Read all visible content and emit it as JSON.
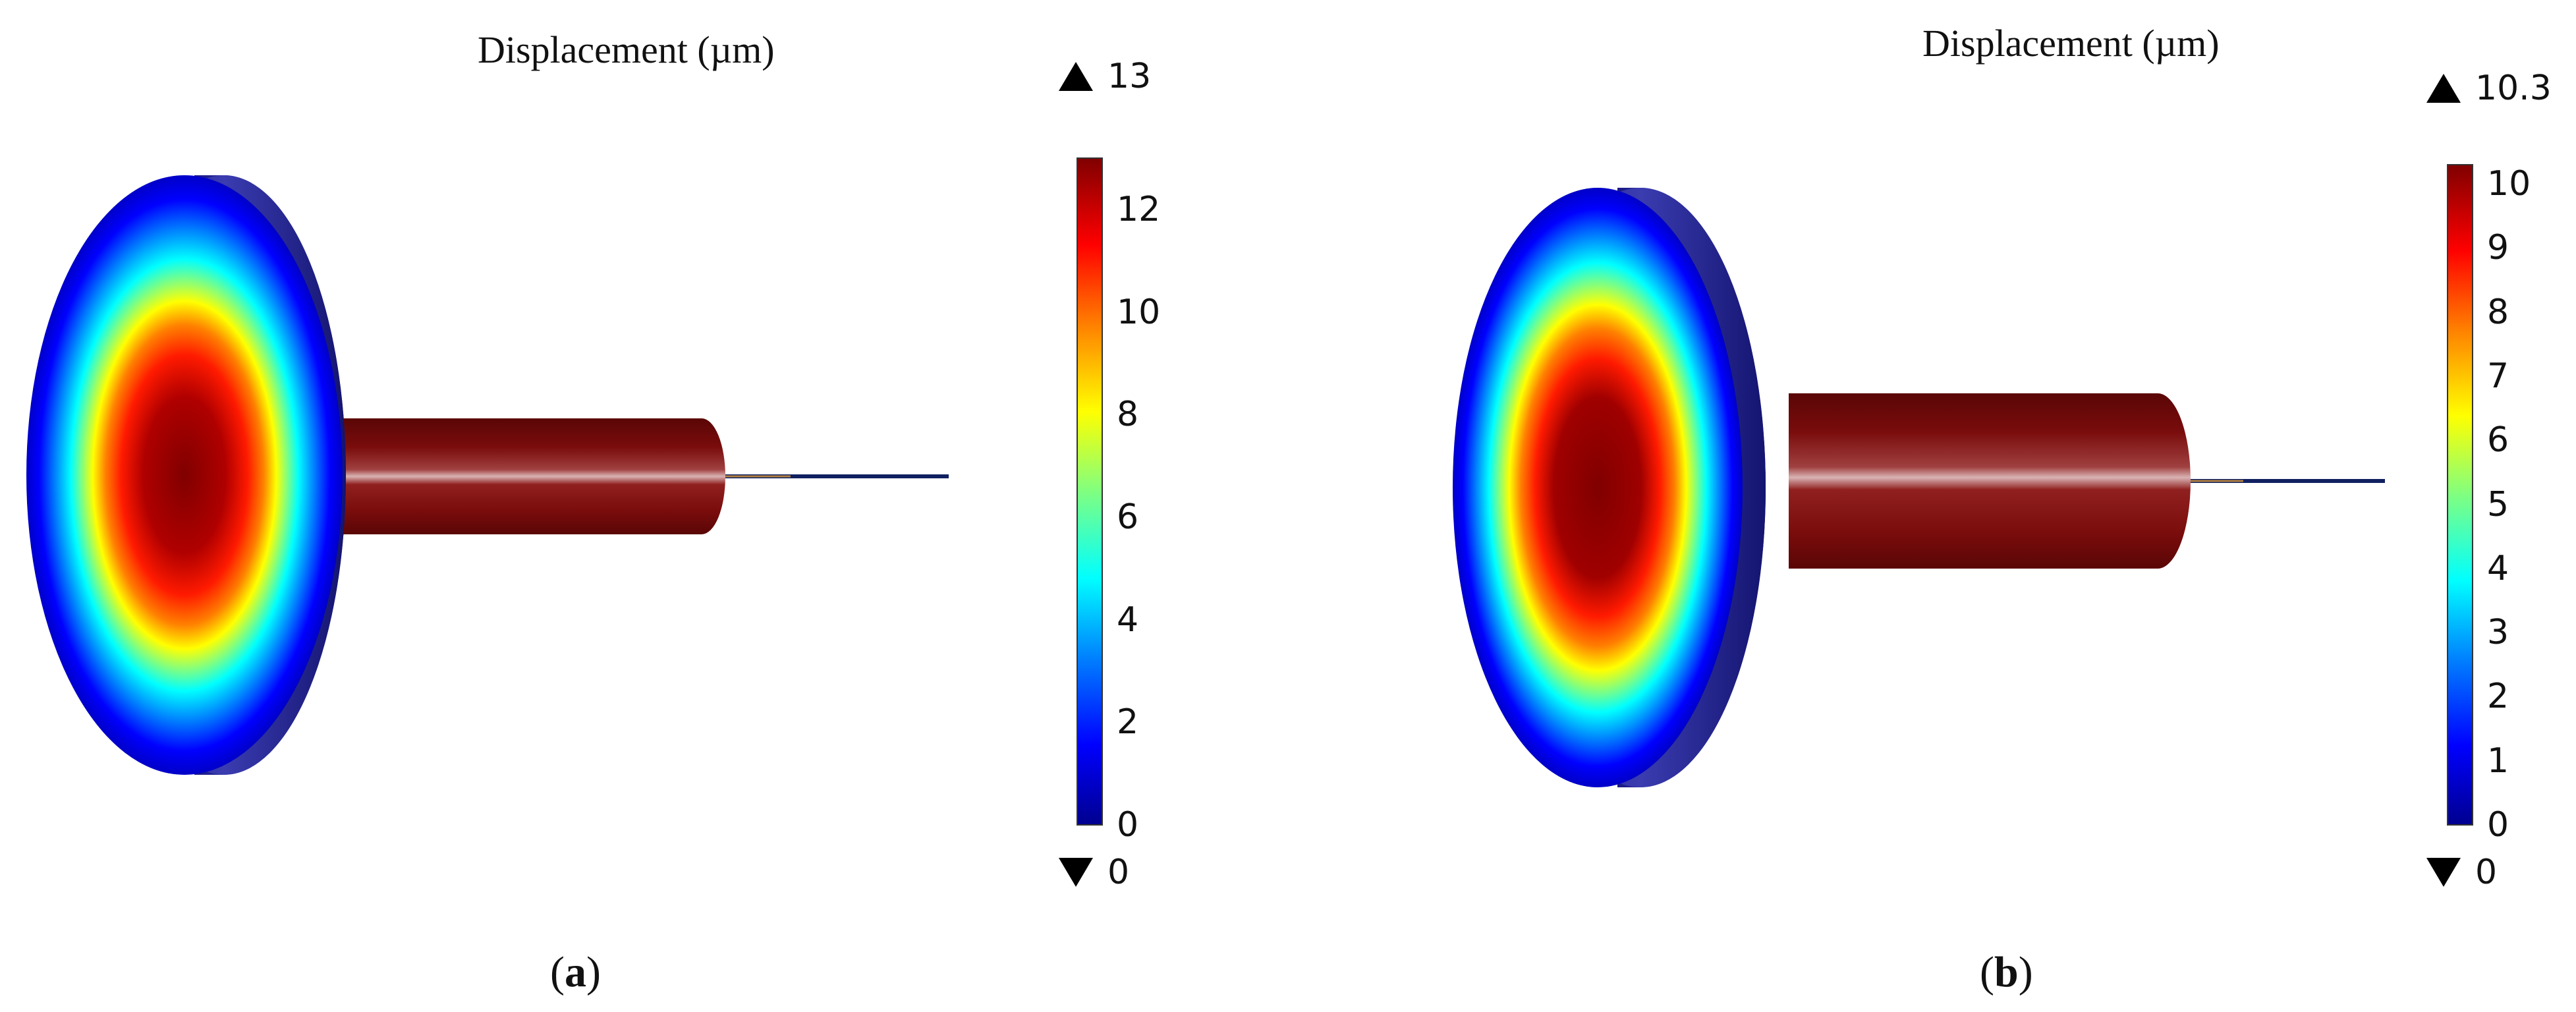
{
  "colors": {
    "colormap": [
      "#00008f",
      "#0000ff",
      "#0080ff",
      "#00ffff",
      "#80ff80",
      "#ffff00",
      "#ff8000",
      "#ff0000",
      "#800000"
    ],
    "rod": "#7a0c0c",
    "rod_highlight": "#d9b3b3",
    "disk_edge": "#1c1e8c",
    "wire": "#102060"
  },
  "panels": [
    {
      "id": "a",
      "title": "Displacement (µm)",
      "sublabel_letter": "a",
      "max_label": "13",
      "min_label": "0",
      "colorbar_min": 0,
      "colorbar_max": 13,
      "ticks": [
        "0",
        "2",
        "4",
        "6",
        "8",
        "10",
        "12"
      ],
      "tick_values": [
        0,
        2,
        4,
        6,
        8,
        10,
        12
      ]
    },
    {
      "id": "b",
      "title": "Displacement (µm)",
      "sublabel_letter": "b",
      "max_label": "10.3",
      "min_label": "0",
      "colorbar_min": 0,
      "colorbar_max": 10.3,
      "ticks": [
        "0",
        "1",
        "2",
        "3",
        "4",
        "5",
        "6",
        "7",
        "8",
        "9",
        "10"
      ],
      "tick_values": [
        0,
        1,
        2,
        3,
        4,
        5,
        6,
        7,
        8,
        9,
        10
      ]
    }
  ]
}
